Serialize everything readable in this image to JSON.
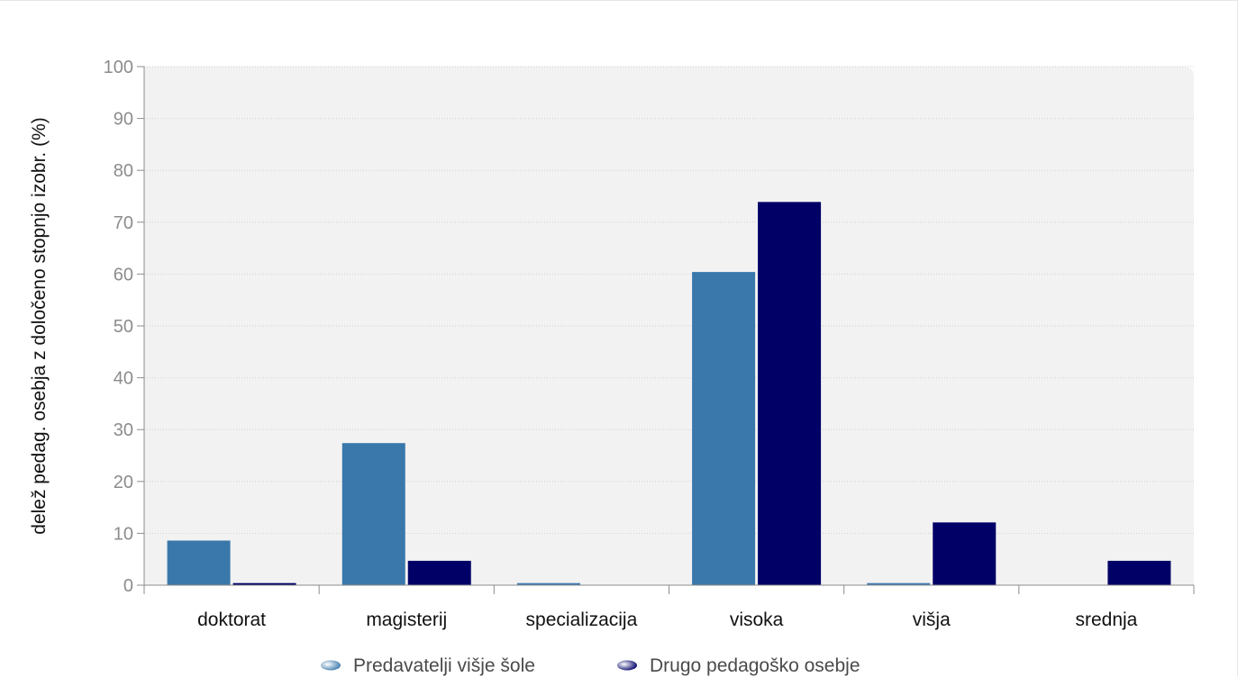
{
  "chart_data": {
    "type": "bar",
    "title": "",
    "xlabel": "",
    "ylabel": "delež pedag. osebja z določeno stopnjo izobr. (%)",
    "ylim": [
      0,
      100
    ],
    "yticks": [
      0,
      10,
      20,
      30,
      40,
      50,
      60,
      70,
      80,
      90,
      100
    ],
    "grid": true,
    "legend_position": "bottom",
    "categories": [
      "doktorat",
      "magisterij",
      "specializacija",
      "visoka",
      "višja",
      "srednja"
    ],
    "series": [
      {
        "name": "Predavatelji višje šole",
        "color": "#3a78ab",
        "values": [
          8.6,
          27.4,
          0.4,
          60.4,
          0.4,
          0
        ]
      },
      {
        "name": "Drugo pedagoško osebje",
        "color": "#000066",
        "values": [
          0.4,
          4.7,
          0,
          73.9,
          12.1,
          4.7
        ]
      }
    ]
  }
}
